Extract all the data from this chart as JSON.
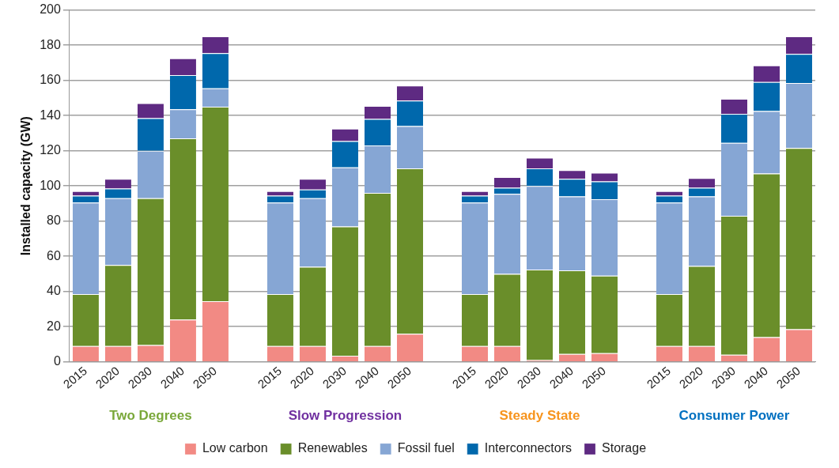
{
  "chart_data": {
    "type": "bar",
    "stacked": true,
    "ylabel": "Installed capacity (GW)",
    "categories": [
      "2015",
      "2020",
      "2030",
      "2040",
      "2050",
      null,
      "2015",
      "2020",
      "2030",
      "2040",
      "2050",
      null,
      "2015",
      "2020",
      "2030",
      "2040",
      "2050",
      null,
      "2015",
      "2020",
      "2030",
      "2040",
      "2050"
    ],
    "series": [
      {
        "name": "Low carbon",
        "color": "#f28a84",
        "values": [
          9,
          9,
          9.5,
          24,
          34.5,
          null,
          9,
          9,
          3.5,
          9,
          16,
          null,
          9,
          9,
          1,
          4.5,
          5,
          null,
          9,
          9,
          4,
          14,
          18.5
        ]
      },
      {
        "name": "Renewables",
        "color": "#6a8e2a",
        "values": [
          29.5,
          46,
          83.5,
          103,
          110.5,
          null,
          29.5,
          45,
          73.5,
          87,
          94,
          null,
          29.5,
          41,
          51.5,
          47.5,
          44,
          null,
          29.5,
          45.5,
          79,
          93,
          103
        ]
      },
      {
        "name": "Fossil fuel",
        "color": "#86a6d4",
        "values": [
          52,
          38,
          27,
          16.5,
          10.5,
          null,
          52,
          39,
          33.5,
          27,
          24,
          null,
          52,
          45.5,
          47.5,
          42,
          43.5,
          null,
          52,
          39.5,
          41.5,
          35.5,
          37
        ]
      },
      {
        "name": "Interconnectors",
        "color": "#0068ac",
        "values": [
          4,
          5.5,
          18.5,
          19.5,
          20,
          null,
          4,
          5,
          15,
          15,
          14.5,
          null,
          4,
          3.5,
          10,
          10,
          10,
          null,
          4,
          5,
          16.5,
          16.5,
          16.5
        ]
      },
      {
        "name": "Storage",
        "color": "#5e2a82",
        "values": [
          2.5,
          5.5,
          8.5,
          9.5,
          9.5,
          null,
          2.5,
          6,
          7,
          7.5,
          8.5,
          null,
          2.5,
          6,
          6,
          5,
          5,
          null,
          2.5,
          5.5,
          8.5,
          9.5,
          10
        ]
      }
    ],
    "annotations": [
      "Two Degrees",
      "Slow Progression",
      "Steady State",
      "Consumer Power"
    ],
    "ylim": [
      0,
      200
    ],
    "yticks": [
      0,
      20,
      40,
      60,
      80,
      100,
      120,
      140,
      160,
      180,
      200
    ],
    "grid": "y",
    "legend": "bottom"
  }
}
